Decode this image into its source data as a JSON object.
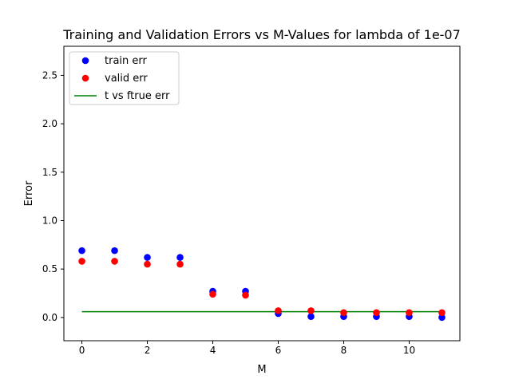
{
  "chart_data": {
    "type": "scatter",
    "title": "Training and Validation Errors vs M-Values for lambda of 1e-07",
    "xlabel": "M",
    "ylabel": "Error",
    "xlim": [
      -0.55,
      11.55
    ],
    "ylim": [
      -0.24,
      2.8
    ],
    "xticks": [
      0,
      2,
      4,
      6,
      8,
      10
    ],
    "xtick_labels": [
      "0",
      "2",
      "4",
      "6",
      "8",
      "10"
    ],
    "yticks": [
      0.0,
      0.5,
      1.0,
      1.5,
      2.0,
      2.5
    ],
    "ytick_labels": [
      "0.0",
      "0.5",
      "1.0",
      "1.5",
      "2.0",
      "2.5"
    ],
    "grid": false,
    "legend_position": "upper left",
    "series": [
      {
        "name": "train err",
        "kind": "scatter",
        "color": "#0000ff",
        "x": [
          0,
          1,
          2,
          3,
          4,
          5,
          6,
          7,
          8,
          9,
          10,
          11
        ],
        "y": [
          0.69,
          0.69,
          0.62,
          0.62,
          0.27,
          0.27,
          0.04,
          0.01,
          0.01,
          0.01,
          0.01,
          0.0
        ]
      },
      {
        "name": "valid err",
        "kind": "scatter",
        "color": "#ff0000",
        "x": [
          0,
          1,
          2,
          3,
          4,
          5,
          6,
          7,
          8,
          9,
          10,
          11
        ],
        "y": [
          0.58,
          0.58,
          0.55,
          0.55,
          0.24,
          0.23,
          0.07,
          0.07,
          0.05,
          0.05,
          0.05,
          0.05
        ]
      },
      {
        "name": "t vs ftrue err",
        "kind": "line",
        "color": "#008000",
        "x": [
          0,
          11
        ],
        "y": [
          0.06,
          0.06
        ]
      }
    ]
  }
}
